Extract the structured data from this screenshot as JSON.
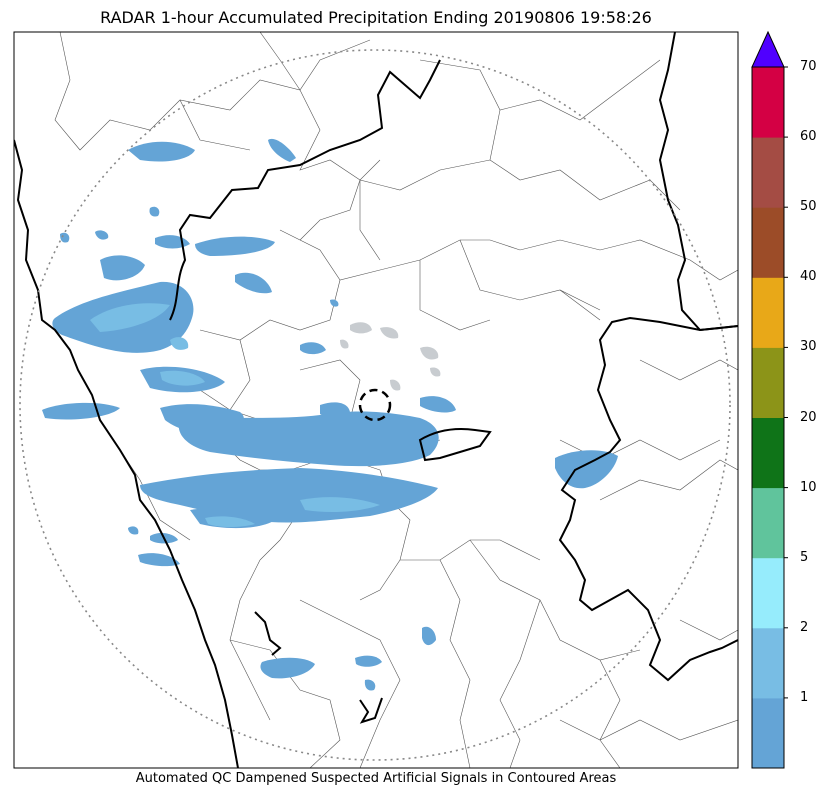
{
  "title": "RADAR 1-hour Accumulated Precipitation Ending 20190806 19:58:26",
  "footer": "Automated QC Dampened Suspected Artificial Signals in Contoured Areas",
  "colorbar": {
    "tick_labels": [
      "1",
      "2",
      "5",
      "10",
      "20",
      "30",
      "40",
      "50",
      "60",
      "70"
    ],
    "colors": [
      "#64a4d6",
      "#78bde4",
      "#96ecfc",
      "#60c49c",
      "#0f7418",
      "#8c9418",
      "#e8a818",
      "#9c4c28",
      "#a44c44",
      "#d40044",
      "#5000ff"
    ],
    "extend": "max"
  },
  "map": {
    "range_ring": "dotted",
    "radar_marker": "dashed circle",
    "precip_color_light": "#64a4d6",
    "precip_color_lighter": "#78bde4",
    "precip_color_cyan": "#96ecfc"
  }
}
